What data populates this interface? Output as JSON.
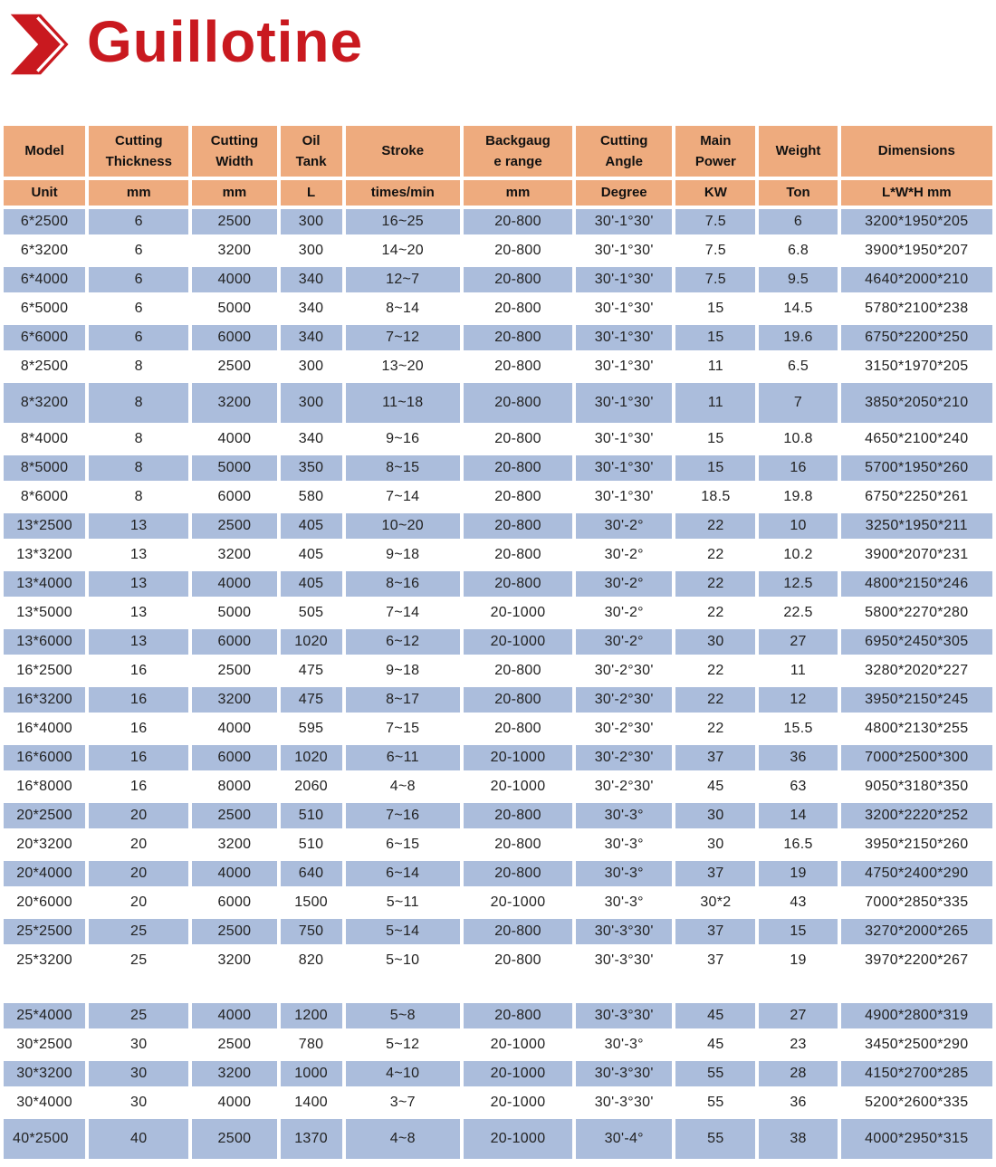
{
  "logo": {
    "text": "Guillotine",
    "icon": "double-chevron-right-icon",
    "color": "#c9191f"
  },
  "colors": {
    "accent_red": "#c9191f",
    "header_bg": "#eeab7e",
    "row_alt_bg": "#abbddc",
    "row_bg": "#ffffff"
  },
  "table": {
    "columns": [
      {
        "key": "model",
        "label": "Model",
        "unit": "Unit"
      },
      {
        "key": "cutting-thickness",
        "label": "Cutting\nThickness",
        "unit": "mm"
      },
      {
        "key": "cutting-width",
        "label": "Cutting\nWidth",
        "unit": "mm"
      },
      {
        "key": "oil-tank",
        "label": "Oil\nTank",
        "unit": "L"
      },
      {
        "key": "stroke",
        "label": "Stroke",
        "unit": "times/min"
      },
      {
        "key": "backgauge-range",
        "label": "Backgaug\ne range",
        "unit": "mm"
      },
      {
        "key": "cutting-angle",
        "label": "Cutting\nAngle",
        "unit": "Degree"
      },
      {
        "key": "main-power",
        "label": "Main\nPower",
        "unit": "KW"
      },
      {
        "key": "weight",
        "label": "Weight",
        "unit": "Ton"
      },
      {
        "key": "dimensions",
        "label": "Dimensions",
        "unit": "L*W*H mm"
      }
    ],
    "rows": [
      [
        "6*2500",
        "6",
        "2500",
        "300",
        "16~25",
        "20-800",
        "30'-1°30'",
        "7.5",
        "6",
        "3200*1950*205"
      ],
      [
        "6*3200",
        "6",
        "3200",
        "300",
        "14~20",
        "20-800",
        "30'-1°30'",
        "7.5",
        "6.8",
        "3900*1950*207"
      ],
      [
        "6*4000",
        "6",
        "4000",
        "340",
        "12~7",
        "20-800",
        "30'-1°30'",
        "7.5",
        "9.5",
        "4640*2000*210"
      ],
      [
        "6*5000",
        "6",
        "5000",
        "340",
        "8~14",
        "20-800",
        "30'-1°30'",
        "15",
        "14.5",
        "5780*2100*238"
      ],
      [
        "6*6000",
        "6",
        "6000",
        "340",
        "7~12",
        "20-800",
        "30'-1°30'",
        "15",
        "19.6",
        "6750*2200*250"
      ],
      [
        "8*2500",
        "8",
        "2500",
        "300",
        "13~20",
        "20-800",
        "30'-1°30'",
        "11",
        "6.5",
        "3150*1970*205"
      ],
      [
        "8*3200",
        "8",
        "3200",
        "300",
        "11~18",
        "20-800",
        "30'-1°30'",
        "11",
        "7",
        "3850*2050*210"
      ],
      [
        "8*4000",
        "8",
        "4000",
        "340",
        "9~16",
        "20-800",
        "30'-1°30'",
        "15",
        "10.8",
        "4650*2100*240"
      ],
      [
        "8*5000",
        "8",
        "5000",
        "350",
        "8~15",
        "20-800",
        "30'-1°30'",
        "15",
        "16",
        "5700*1950*260"
      ],
      [
        "8*6000",
        "8",
        "6000",
        "580",
        "7~14",
        "20-800",
        "30'-1°30'",
        "18.5",
        "19.8",
        "6750*2250*261"
      ],
      [
        "13*2500",
        "13",
        "2500",
        "405",
        "10~20",
        "20-800",
        "30'-2°",
        "22",
        "10",
        "3250*1950*211"
      ],
      [
        "13*3200",
        "13",
        "3200",
        "405",
        "9~18",
        "20-800",
        "30'-2°",
        "22",
        "10.2",
        "3900*2070*231"
      ],
      [
        "13*4000",
        "13",
        "4000",
        "405",
        "8~16",
        "20-800",
        "30'-2°",
        "22",
        "12.5",
        "4800*2150*246"
      ],
      [
        "13*5000",
        "13",
        "5000",
        "505",
        "7~14",
        "20-1000",
        "30'-2°",
        "22",
        "22.5",
        "5800*2270*280"
      ],
      [
        "13*6000",
        "13",
        "6000",
        "1020",
        "6~12",
        "20-1000",
        "30'-2°",
        "30",
        "27",
        "6950*2450*305"
      ],
      [
        "16*2500",
        "16",
        "2500",
        "475",
        "9~18",
        "20-800",
        "30'-2°30'",
        "22",
        "11",
        "3280*2020*227"
      ],
      [
        "16*3200",
        "16",
        "3200",
        "475",
        "8~17",
        "20-800",
        "30'-2°30'",
        "22",
        "12",
        "3950*2150*245"
      ],
      [
        "16*4000",
        "16",
        "4000",
        "595",
        "7~15",
        "20-800",
        "30'-2°30'",
        "22",
        "15.5",
        "4800*2130*255"
      ],
      [
        "16*6000",
        "16",
        "6000",
        "1020",
        "6~11",
        "20-1000",
        "30'-2°30'",
        "37",
        "36",
        "7000*2500*300"
      ],
      [
        "16*8000",
        "16",
        "8000",
        "2060",
        "4~8",
        "20-1000",
        "30'-2°30'",
        "45",
        "63",
        "9050*3180*350"
      ],
      [
        "20*2500",
        "20",
        "2500",
        "510",
        "7~16",
        "20-800",
        "30'-3°",
        "30",
        "14",
        "3200*2220*252"
      ],
      [
        "20*3200",
        "20",
        "3200",
        "510",
        "6~15",
        "20-800",
        "30'-3°",
        "30",
        "16.5",
        "3950*2150*260"
      ],
      [
        "20*4000",
        "20",
        "4000",
        "640",
        "6~14",
        "20-800",
        "30'-3°",
        "37",
        "19",
        "4750*2400*290"
      ],
      [
        "20*6000",
        "20",
        "6000",
        "1500",
        "5~11",
        "20-1000",
        "30'-3°",
        "30*2",
        "43",
        "7000*2850*335"
      ],
      [
        "25*2500",
        "25",
        "2500",
        "750",
        "5~14",
        "20-800",
        "30'-3°30'",
        "37",
        "15",
        "3270*2000*265"
      ],
      [
        "25*3200",
        "25",
        "3200",
        "820",
        "5~10",
        "20-800",
        "30'-3°30'",
        "37",
        "19",
        "3970*2200*267"
      ],
      [
        "25*4000",
        "25",
        "4000",
        "1200",
        "5~8",
        "20-800",
        "30'-3°30'",
        "45",
        "27",
        "4900*2800*319"
      ],
      [
        "30*2500",
        "30",
        "2500",
        "780",
        "5~12",
        "20-1000",
        "30'-3°",
        "45",
        "23",
        "3450*2500*290"
      ],
      [
        "30*3200",
        "30",
        "3200",
        "1000",
        "4~10",
        "20-1000",
        "30'-3°30'",
        "55",
        "28",
        "4150*2700*285"
      ],
      [
        "30*4000",
        "30",
        "4000",
        "1400",
        "3~7",
        "20-1000",
        "30'-3°30'",
        "55",
        "36",
        "5200*2600*335"
      ],
      [
        "40*2500",
        "40",
        "2500",
        "1370",
        "4~8",
        "20-1000",
        "30'-4°",
        "55",
        "38",
        "4000*2950*315"
      ]
    ]
  }
}
